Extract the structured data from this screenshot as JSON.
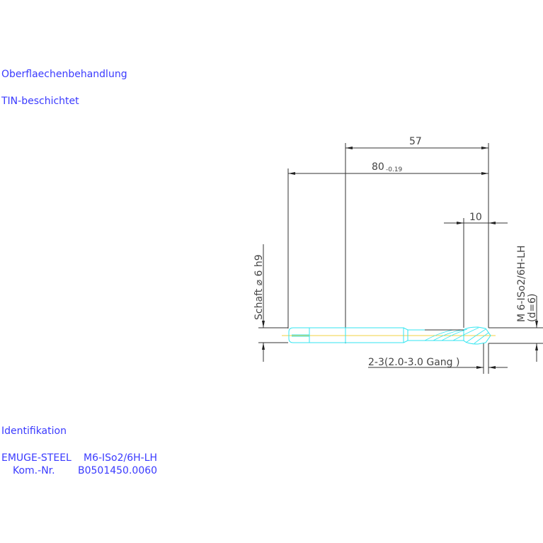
{
  "surface": {
    "heading": "Oberflaechenbehandlung",
    "value": "TIN-beschichtet"
  },
  "identification": {
    "heading": "Identifikation",
    "product": "EMUGE-STEEL",
    "designation": "M6-ISo2/6H-LH",
    "kom_label": "Kom.-Nr.",
    "kom_value": "B0501450.0060"
  },
  "dimensions": {
    "d57": "57",
    "d80": "80",
    "d80_tol": "-0.19",
    "d10": "10",
    "shank": "Schaft ⌀ 6 h9",
    "thread": "M 6-ISo2/6H-LH",
    "thread_d": "(d=6)",
    "chamfer": "2-3(2.0-3.0 Gang  )"
  },
  "colors": {
    "text": "#3a3aff",
    "tool": "#33e6f0",
    "centerline": "#f0d040",
    "dim": "#333333"
  }
}
